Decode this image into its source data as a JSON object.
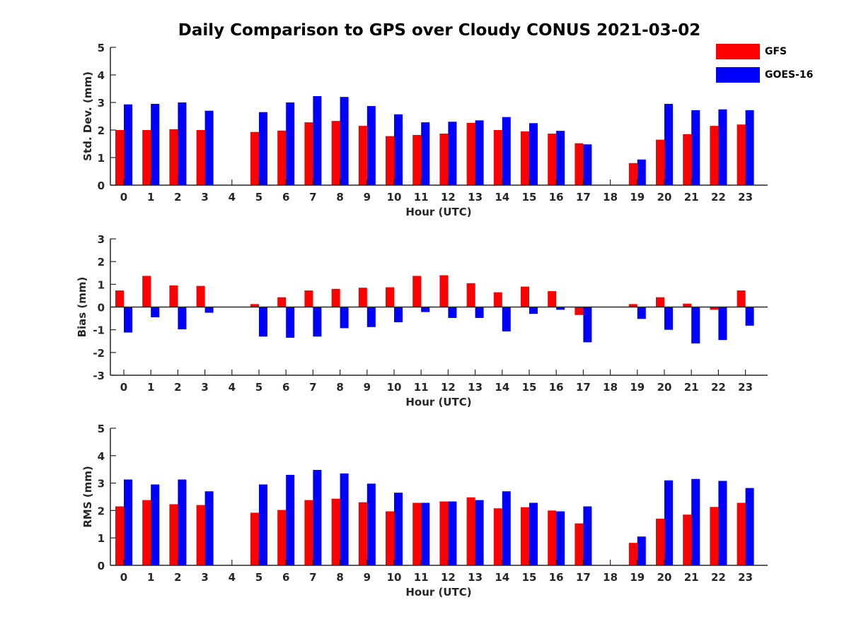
{
  "title": "Daily Comparison to GPS over Cloudy CONUS 2021-03-02",
  "legend": {
    "items": [
      {
        "label": "GFS",
        "color": "#ff0000"
      },
      {
        "label": "GOES-16",
        "color": "#0000ff"
      }
    ]
  },
  "chart_data": [
    {
      "type": "bar",
      "xlabel": "Hour (UTC)",
      "ylabel": "Std. Dev. (mm)",
      "ylim": [
        0,
        5
      ],
      "yticks": [
        0,
        1,
        2,
        3,
        4,
        5
      ],
      "categories": [
        "0",
        "1",
        "2",
        "3",
        "4",
        "5",
        "6",
        "7",
        "8",
        "9",
        "10",
        "11",
        "12",
        "13",
        "14",
        "15",
        "16",
        "17",
        "18",
        "19",
        "20",
        "21",
        "22",
        "23"
      ],
      "series": [
        {
          "name": "GFS",
          "color": "#ff0000",
          "values": [
            2.0,
            2.0,
            2.03,
            2.0,
            null,
            1.93,
            1.98,
            2.28,
            2.33,
            2.15,
            1.78,
            1.82,
            1.87,
            2.26,
            2.0,
            1.95,
            1.87,
            1.52,
            null,
            0.8,
            1.65,
            1.85,
            2.15,
            2.2
          ]
        },
        {
          "name": "GOES-16",
          "color": "#0000ff",
          "values": [
            2.93,
            2.95,
            3.0,
            2.7,
            null,
            2.65,
            3.0,
            3.23,
            3.2,
            2.87,
            2.57,
            2.28,
            2.3,
            2.35,
            2.47,
            2.25,
            1.97,
            1.48,
            null,
            0.93,
            2.95,
            2.72,
            2.75,
            2.72
          ]
        }
      ]
    },
    {
      "type": "bar",
      "xlabel": "Hour (UTC)",
      "ylabel": "Bias (mm)",
      "ylim": [
        -3,
        3
      ],
      "yticks": [
        -3,
        -2,
        -1,
        0,
        1,
        2,
        3
      ],
      "categories": [
        "0",
        "1",
        "2",
        "3",
        "4",
        "5",
        "6",
        "7",
        "8",
        "9",
        "10",
        "11",
        "12",
        "13",
        "14",
        "15",
        "16",
        "17",
        "18",
        "19",
        "20",
        "21",
        "22",
        "23"
      ],
      "series": [
        {
          "name": "GFS",
          "color": "#ff0000",
          "values": [
            0.73,
            1.37,
            0.95,
            0.93,
            null,
            0.13,
            0.43,
            0.73,
            0.8,
            0.85,
            0.87,
            1.37,
            1.4,
            1.05,
            0.65,
            0.9,
            0.7,
            -0.35,
            null,
            0.13,
            0.43,
            0.15,
            -0.12,
            0.73
          ]
        },
        {
          "name": "GOES-16",
          "color": "#0000ff",
          "values": [
            -1.12,
            -0.45,
            -0.98,
            -0.25,
            null,
            -1.3,
            -1.35,
            -1.3,
            -0.93,
            -0.88,
            -0.67,
            -0.22,
            -0.48,
            -0.48,
            -1.07,
            -0.3,
            -0.12,
            -1.55,
            null,
            -0.52,
            -1.0,
            -1.6,
            -1.45,
            -0.82
          ]
        }
      ]
    },
    {
      "type": "bar",
      "xlabel": "Hour (UTC)",
      "ylabel": "RMS (mm)",
      "ylim": [
        0,
        5
      ],
      "yticks": [
        0,
        1,
        2,
        3,
        4,
        5
      ],
      "categories": [
        "0",
        "1",
        "2",
        "3",
        "4",
        "5",
        "6",
        "7",
        "8",
        "9",
        "10",
        "11",
        "12",
        "13",
        "14",
        "15",
        "16",
        "17",
        "18",
        "19",
        "20",
        "21",
        "22",
        "23"
      ],
      "series": [
        {
          "name": "GFS",
          "color": "#ff0000",
          "values": [
            2.15,
            2.38,
            2.23,
            2.2,
            null,
            1.92,
            2.02,
            2.38,
            2.43,
            2.3,
            1.97,
            2.28,
            2.33,
            2.48,
            2.08,
            2.12,
            2.0,
            1.53,
            null,
            0.82,
            1.7,
            1.85,
            2.13,
            2.28
          ]
        },
        {
          "name": "GOES-16",
          "color": "#0000ff",
          "values": [
            3.13,
            2.95,
            3.13,
            2.7,
            null,
            2.95,
            3.3,
            3.48,
            3.35,
            2.98,
            2.65,
            2.28,
            2.33,
            2.38,
            2.7,
            2.28,
            1.97,
            2.15,
            null,
            1.05,
            3.1,
            3.15,
            3.08,
            2.82
          ]
        }
      ]
    }
  ]
}
